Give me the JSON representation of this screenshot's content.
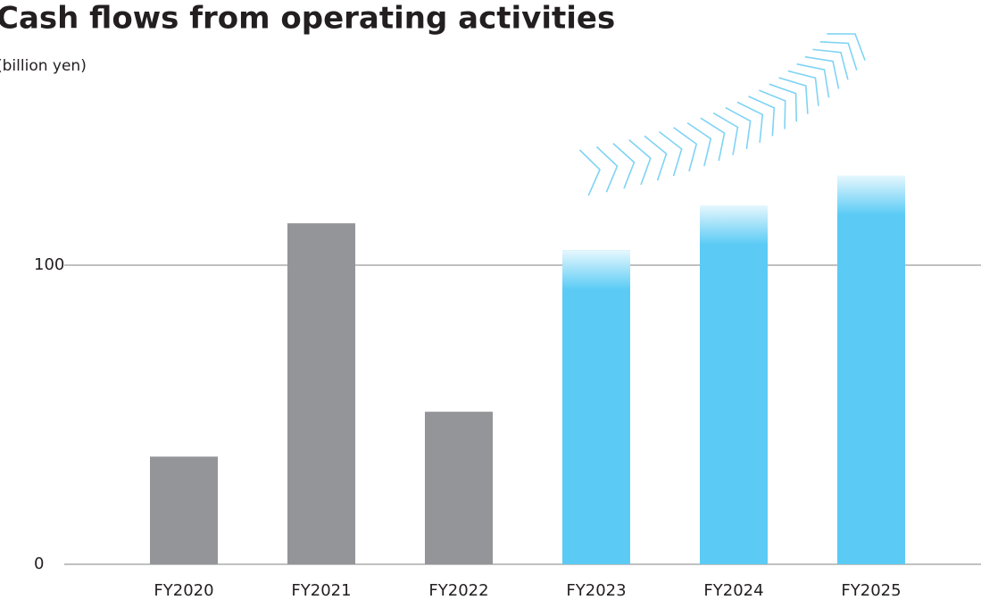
{
  "chart_data": {
    "type": "bar",
    "title": "Cash flows from operating activities",
    "subtitle": "(billion yen)",
    "categories": [
      "FY2020",
      "FY2021",
      "FY2022",
      "FY2023",
      "FY2024",
      "FY2025"
    ],
    "values": [
      36,
      114,
      51,
      105,
      120,
      130
    ],
    "colors": [
      "#939598",
      "#939598",
      "#939598",
      "#5bcbf5",
      "#5bcbf5",
      "#5bcbf5"
    ],
    "ylim": [
      0,
      150
    ],
    "yticks": [
      0,
      100
    ],
    "grid": true
  }
}
